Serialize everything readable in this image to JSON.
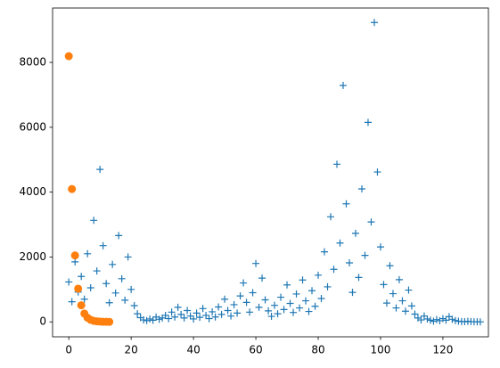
{
  "chart_data": {
    "type": "scatter",
    "xlim": [
      -5.2,
      134.6
    ],
    "ylim": [
      -460.8,
      9676.8
    ],
    "xticks": [
      0,
      20,
      40,
      60,
      80,
      100,
      120
    ],
    "yticks": [
      0,
      2000,
      4000,
      6000,
      8000
    ],
    "series": [
      {
        "color": "#1f77b4",
        "marker": "plus",
        "x": [
          0,
          1,
          2,
          3,
          4,
          5,
          6,
          7,
          8,
          9,
          10,
          11,
          12,
          13,
          14,
          15,
          16,
          17,
          18,
          19,
          20,
          21,
          22,
          23,
          24,
          25,
          26,
          27,
          28,
          29,
          30,
          31,
          32,
          33,
          34,
          35,
          36,
          37,
          38,
          39,
          40,
          41,
          42,
          43,
          44,
          45,
          46,
          47,
          48,
          49,
          50,
          51,
          52,
          53,
          54,
          55,
          56,
          57,
          58,
          59,
          60,
          61,
          62,
          63,
          64,
          65,
          66,
          67,
          68,
          69,
          70,
          71,
          72,
          73,
          74,
          75,
          76,
          77,
          78,
          79,
          80,
          81,
          82,
          83,
          84,
          85,
          86,
          87,
          88,
          89,
          90,
          91,
          92,
          93,
          94,
          95,
          96,
          97,
          98,
          99,
          100,
          101,
          102,
          103,
          104,
          105,
          106,
          107,
          108,
          109,
          110,
          111,
          112,
          113,
          114,
          115,
          116,
          117,
          118,
          119,
          120,
          121,
          122,
          123,
          124,
          125,
          126,
          127,
          128,
          129,
          130,
          131,
          132
        ],
        "values": [
          1230,
          620,
          1850,
          920,
          1400,
          700,
          2100,
          1050,
          3130,
          1570,
          4700,
          2350,
          1180,
          590,
          1770,
          890,
          2660,
          1330,
          670,
          2000,
          1000,
          500,
          250,
          130,
          60,
          40,
          90,
          50,
          150,
          80,
          120,
          200,
          100,
          300,
          150,
          450,
          230,
          120,
          350,
          180,
          90,
          270,
          140,
          410,
          200,
          100,
          310,
          150,
          460,
          230,
          700,
          350,
          180,
          530,
          270,
          800,
          1200,
          600,
          300,
          900,
          1800,
          450,
          1350,
          680,
          340,
          170,
          510,
          250,
          760,
          380,
          1140,
          570,
          290,
          860,
          430,
          1290,
          650,
          320,
          960,
          480,
          1440,
          720,
          2160,
          1080,
          3240,
          1620,
          4860,
          2430,
          7290,
          3640,
          1820,
          910,
          2730,
          1370,
          4100,
          2050,
          6150,
          3080,
          9230,
          4620,
          2310,
          1150,
          580,
          1730,
          870,
          430,
          1300,
          650,
          330,
          980,
          490,
          240,
          120,
          60,
          180,
          90,
          50,
          20,
          70,
          35,
          100,
          50,
          160,
          80,
          40,
          20,
          10,
          5,
          16,
          8,
          4,
          2,
          1
        ]
      },
      {
        "color": "#ff7f0e",
        "marker": "circle",
        "x": [
          0,
          1,
          2,
          3,
          4,
          5,
          6,
          7,
          8,
          9,
          10,
          11,
          12,
          13
        ],
        "values": [
          8192,
          4096,
          2048,
          1024,
          512,
          256,
          128,
          64,
          32,
          16,
          8,
          4,
          2,
          1
        ]
      }
    ]
  }
}
